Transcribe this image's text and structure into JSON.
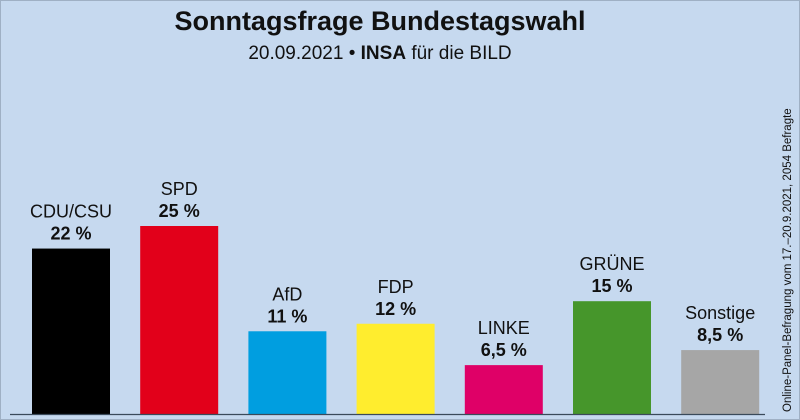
{
  "chart_data": {
    "type": "bar",
    "title": "Sonntagsfrage Bundestagswahl",
    "subtitle": {
      "date": "20.09.2021",
      "separator": "•",
      "institute": "INSA",
      "client": "für die BILD"
    },
    "side_note": "Online-Panel-Befragung vom 17.–20.9.2021, 2054 Befragte",
    "xlabel": "",
    "ylabel": "",
    "ylim": [
      0,
      25
    ],
    "grid": false,
    "legend": "none",
    "categories": [
      "CDU/CSU",
      "SPD",
      "AfD",
      "FDP",
      "LINKE",
      "GRÜNE",
      "Sonstige"
    ],
    "values": [
      22,
      25,
      11,
      12,
      6.5,
      15,
      8.5
    ],
    "value_labels": [
      "22 %",
      "25 %",
      "11 %",
      "12 %",
      "6,5 %",
      "15 %",
      "8,5 %"
    ],
    "colors": [
      "#000000",
      "#e2001a",
      "#009ee0",
      "#ffed2e",
      "#df0067",
      "#46962b",
      "#a6a6a6"
    ]
  },
  "colors": {
    "background": "#c6d9ef",
    "baseline": "#3a4a5a"
  }
}
